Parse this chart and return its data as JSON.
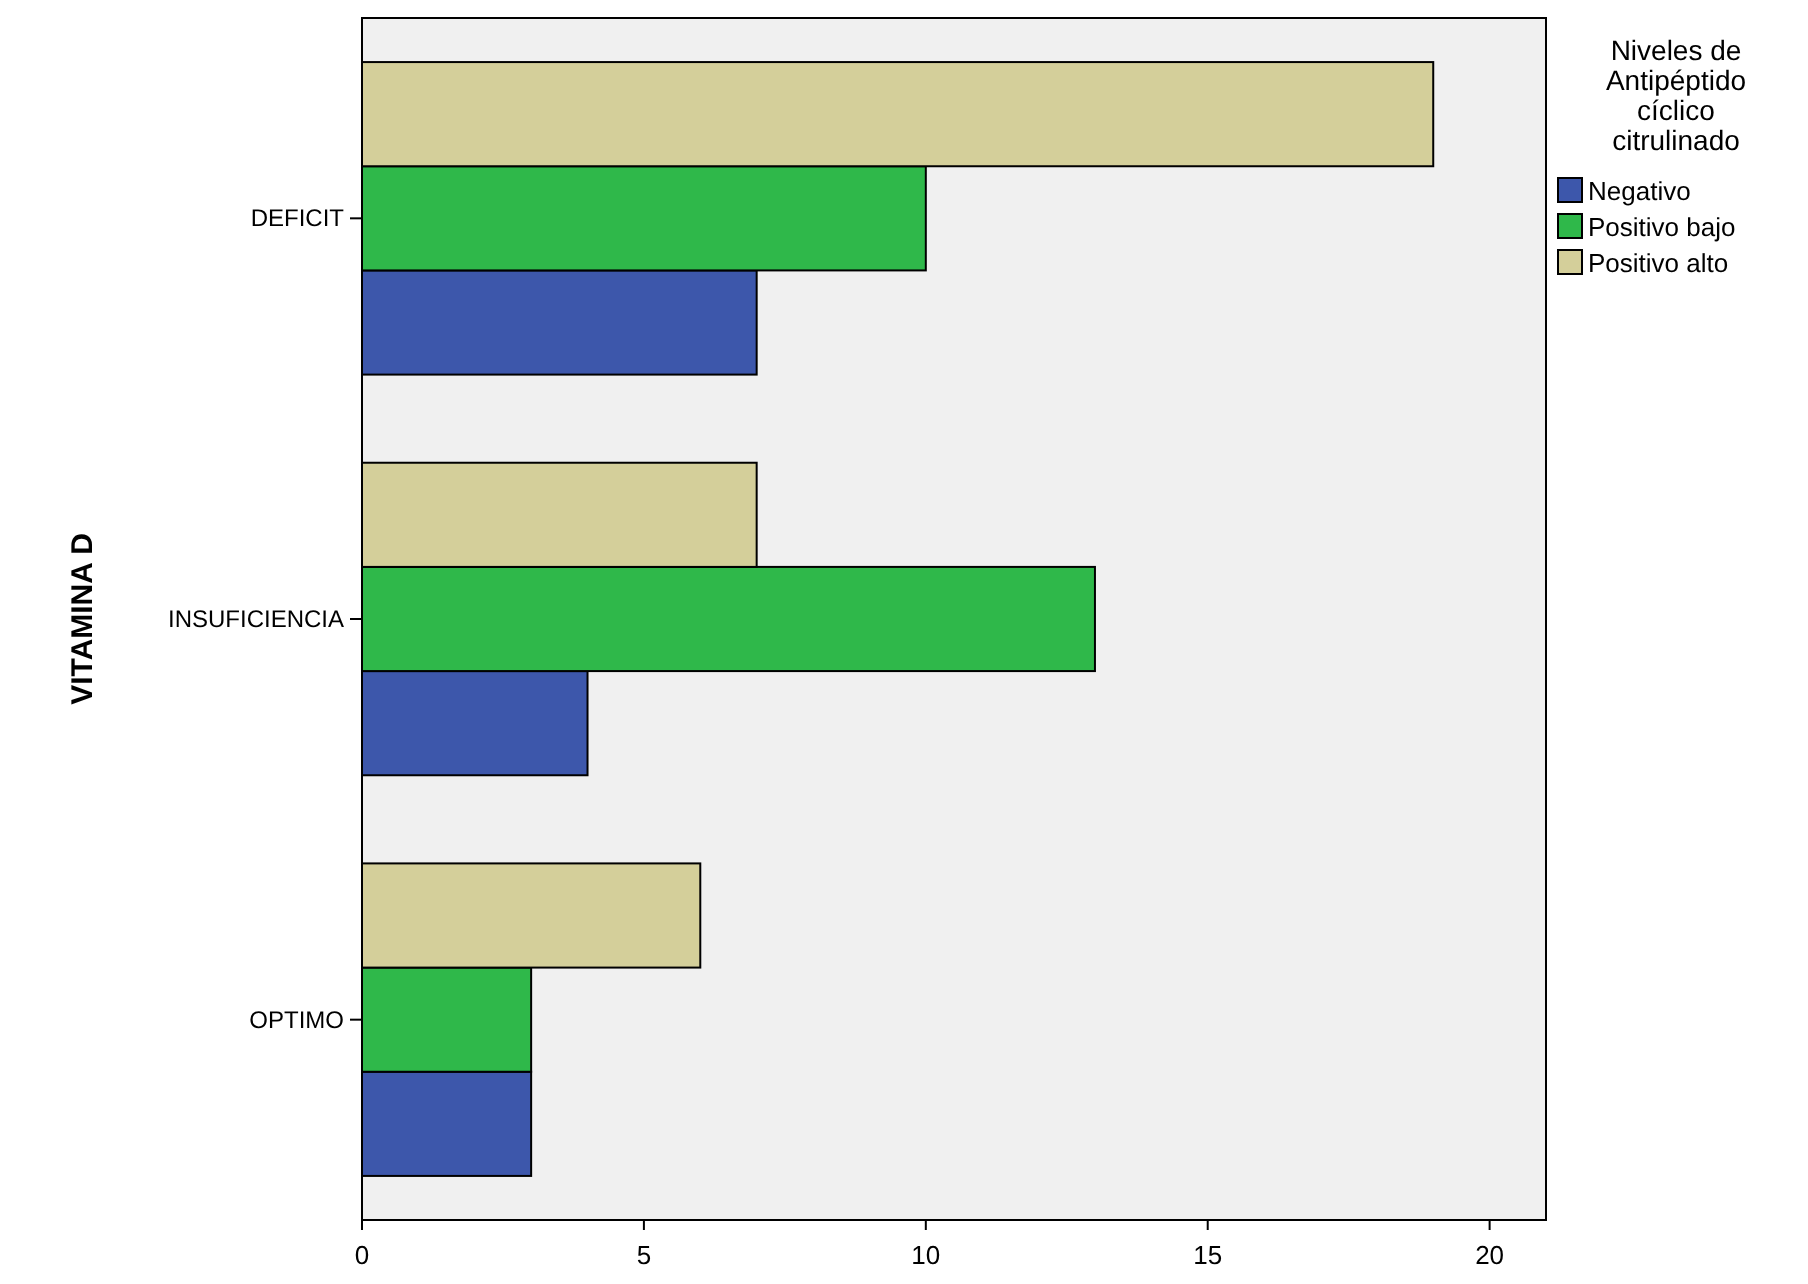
{
  "chart_data": {
    "type": "bar",
    "orientation": "horizontal",
    "ylabel": "VITAMINA D",
    "legend_title": "Niveles de Antipéptido cíclico citrulinado",
    "legend": "right",
    "categories": [
      "DEFICIT",
      "INSUFICIENCIA",
      "OPTIMO"
    ],
    "series": [
      {
        "name": "Negativo",
        "color": "#3d57ab",
        "values": [
          7,
          4,
          3
        ]
      },
      {
        "name": "Positivo bajo",
        "color": "#2fb84a",
        "values": [
          10,
          13,
          3
        ]
      },
      {
        "name": "Positivo alto",
        "color": "#d4cf9a",
        "values": [
          19,
          7,
          6
        ]
      }
    ],
    "xlim": [
      0,
      21
    ],
    "xticks": [
      0,
      5,
      10,
      15,
      20
    ],
    "grid": false
  }
}
